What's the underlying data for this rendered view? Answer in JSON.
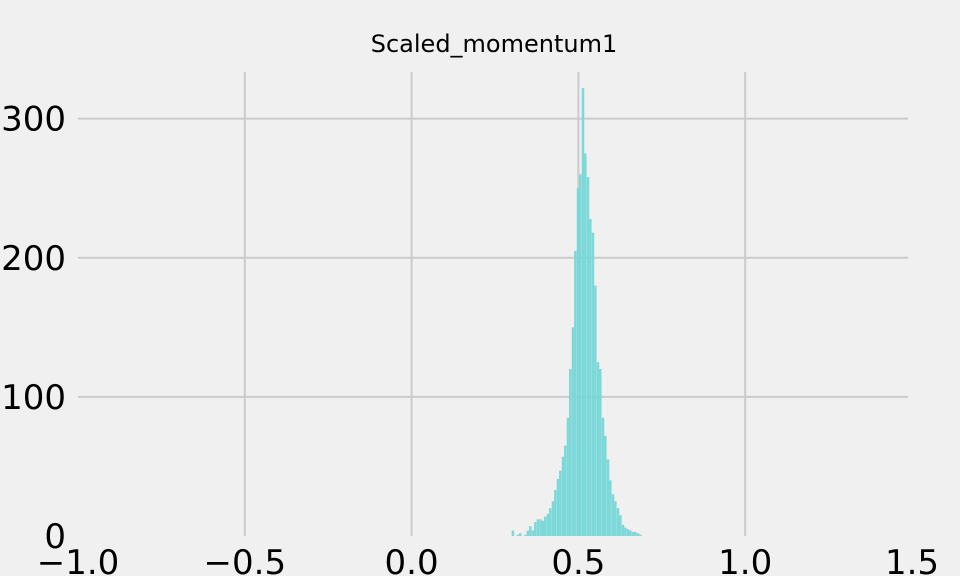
{
  "chart_data": {
    "type": "bar",
    "title": "Scaled_momentum1",
    "xlabel": "",
    "ylabel": "",
    "xlim": [
      -1.0,
      1.5
    ],
    "ylim": [
      0,
      335
    ],
    "x_ticks": [
      -1.0,
      -0.5,
      0.0,
      0.5,
      1.0,
      1.5
    ],
    "x_tick_labels": [
      "−1.0",
      "−0.5",
      "0.0",
      "0.5",
      "1.0",
      "1.5"
    ],
    "y_ticks": [
      0,
      100,
      200,
      300
    ],
    "y_tick_labels": [
      "0",
      "100",
      "200",
      "300"
    ],
    "grid": true,
    "series": [
      {
        "name": "Scaled_momentum1",
        "color": "#76d7d7",
        "bin_width": 0.0075,
        "bin_starts": [
          0.3,
          0.315,
          0.322,
          0.338,
          0.345,
          0.352,
          0.36,
          0.367,
          0.375,
          0.383,
          0.39,
          0.397,
          0.405,
          0.412,
          0.42,
          0.427,
          0.435,
          0.442,
          0.45,
          0.457,
          0.465,
          0.472,
          0.48,
          0.487,
          0.495,
          0.502,
          0.51,
          0.517,
          0.525,
          0.532,
          0.54,
          0.547,
          0.555,
          0.562,
          0.57,
          0.577,
          0.585,
          0.592,
          0.6,
          0.607,
          0.615,
          0.622,
          0.63,
          0.637,
          0.645,
          0.652,
          0.66,
          0.667,
          0.675,
          0.682
        ],
        "counts": [
          4,
          1,
          2,
          1,
          4,
          7,
          4,
          10,
          12,
          12,
          11,
          14,
          16,
          20,
          25,
          33,
          41,
          47,
          57,
          65,
          85,
          120,
          150,
          205,
          250,
          260,
          322,
          275,
          258,
          228,
          218,
          180,
          125,
          120,
          85,
          72,
          55,
          40,
          30,
          25,
          20,
          15,
          8,
          6,
          5,
          4,
          3,
          3,
          2,
          1
        ]
      }
    ]
  },
  "colors": {
    "background": "#f0f0f0",
    "grid": "#cbcbcb",
    "bar": "#76d7d7"
  }
}
